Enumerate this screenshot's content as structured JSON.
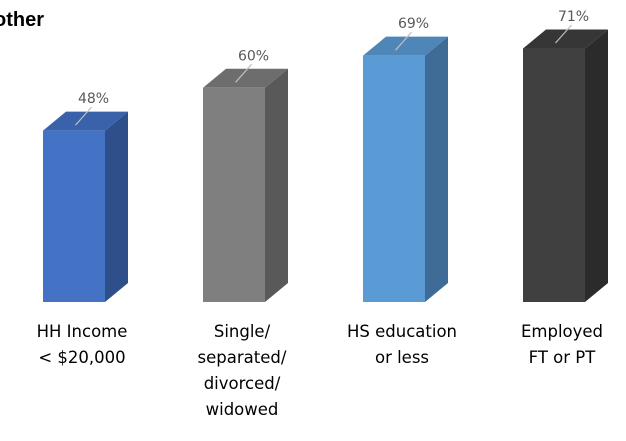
{
  "chart_data": {
    "type": "bar",
    "title": "other",
    "categories": [
      [
        "HH Income",
        "< $20,000"
      ],
      [
        "Single/",
        "separated/",
        "divorced/",
        "widowed"
      ],
      [
        "HS education",
        "or less"
      ],
      [
        "Employed",
        "FT or PT"
      ]
    ],
    "values": [
      48,
      60,
      69,
      71
    ],
    "value_labels": [
      "48%",
      "60%",
      "69%",
      "71%"
    ],
    "colors": {
      "front": [
        "#4472c4",
        "#7f7f7f",
        "#5b9bd5",
        "#404040"
      ],
      "side": [
        "#2f4f8a",
        "#595959",
        "#3e6c96",
        "#2b2b2b"
      ],
      "top": [
        "#3a62ab",
        "#6d6d6d",
        "#4e86b8",
        "#363636"
      ]
    },
    "ylim": [
      0,
      100
    ],
    "legend": "none",
    "grid": false,
    "three_d": true
  }
}
